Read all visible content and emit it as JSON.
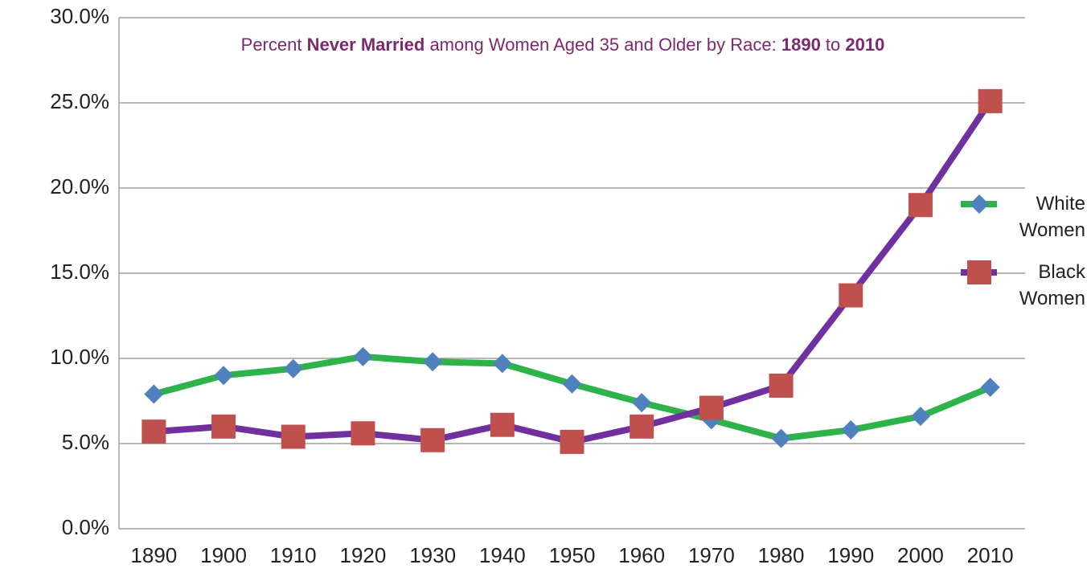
{
  "chart_data": {
    "type": "line",
    "title": [
      {
        "text": "Percent "
      },
      {
        "text": "Never Married",
        "bold": true
      },
      {
        "text": " among Women Aged 35 and Older by Race: "
      },
      {
        "text": "1890",
        "bold": true
      },
      {
        "text": " to "
      },
      {
        "text": "2010",
        "bold": true
      }
    ],
    "title_color": "#7b2a6e",
    "categories": [
      "1890",
      "1900",
      "1910",
      "1920",
      "1930",
      "1940",
      "1950",
      "1960",
      "1970",
      "1980",
      "1990",
      "2000",
      "2010"
    ],
    "series": [
      {
        "name": "White Women",
        "color": "#2db34a",
        "marker": "diamond",
        "marker_color": "#4f81bd",
        "values": [
          7.9,
          9.0,
          9.4,
          10.1,
          9.8,
          9.7,
          8.5,
          7.4,
          6.4,
          5.3,
          5.8,
          6.6,
          8.3
        ]
      },
      {
        "name": "Black Women",
        "color": "#7030a0",
        "marker": "square",
        "marker_color": "#c0504d",
        "values": [
          5.7,
          6.0,
          5.4,
          5.6,
          5.2,
          6.1,
          5.1,
          6.0,
          7.1,
          8.4,
          13.7,
          19.0,
          25.1
        ]
      }
    ],
    "ylim": [
      0,
      30
    ],
    "yticks": [
      {
        "value": 0,
        "label": "0.0%"
      },
      {
        "value": 5,
        "label": "5.0%"
      },
      {
        "value": 10,
        "label": "10.0%"
      },
      {
        "value": 15,
        "label": "15.0%"
      },
      {
        "value": 20,
        "label": "20.0%"
      },
      {
        "value": 25,
        "label": "25.0%"
      },
      {
        "value": 30,
        "label": "30.0%"
      }
    ],
    "grid": true,
    "legend": "right"
  }
}
